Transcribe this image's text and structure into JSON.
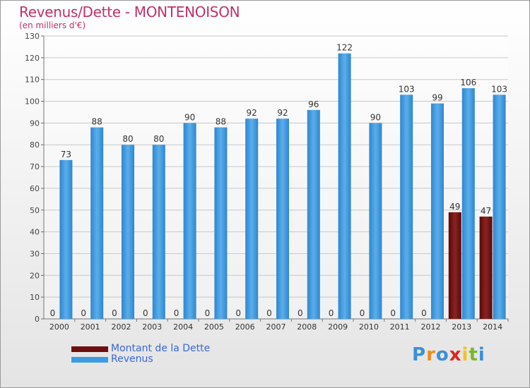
{
  "title": "Revenus/Dette - MONTENOISON",
  "subtitle": "(en milliers d'€)",
  "colors": {
    "debt": "#6e0f0f",
    "revenue": "#3d9be2",
    "title": "#c0306a",
    "legend_text": "#3a66d8"
  },
  "legend": {
    "debt_label": "Montant de la Dette",
    "revenue_label": "Revenus"
  },
  "logo": {
    "letters": [
      "P",
      "r",
      "o",
      "x",
      "i",
      "t",
      "i"
    ],
    "colors": [
      "#3b8fd8",
      "#f28c1c",
      "#3b8fd8",
      "#e0271f",
      "#f2c21c",
      "#78b82a",
      "#3b8fd8"
    ]
  },
  "chart_data": {
    "type": "bar",
    "title": "Revenus/Dette - MONTENOISON",
    "ylabel": "(en milliers d'€)",
    "xlabel": "",
    "categories": [
      "2000",
      "2001",
      "2002",
      "2003",
      "2004",
      "2005",
      "2006",
      "2007",
      "2008",
      "2009",
      "2010",
      "2011",
      "2012",
      "2013",
      "2014"
    ],
    "series": [
      {
        "name": "Montant de la Dette",
        "values": [
          0,
          0,
          0,
          0,
          0,
          0,
          0,
          0,
          0,
          0,
          0,
          0,
          0,
          49,
          47
        ]
      },
      {
        "name": "Revenus",
        "values": [
          73,
          88,
          80,
          80,
          90,
          88,
          92,
          92,
          96,
          122,
          90,
          103,
          99,
          106,
          103
        ]
      }
    ],
    "ylim": [
      0,
      130
    ],
    "yticks": [
      0,
      10,
      20,
      30,
      40,
      50,
      60,
      70,
      80,
      90,
      100,
      110,
      120,
      130
    ],
    "grid": true,
    "legend_position": "bottom-left"
  }
}
